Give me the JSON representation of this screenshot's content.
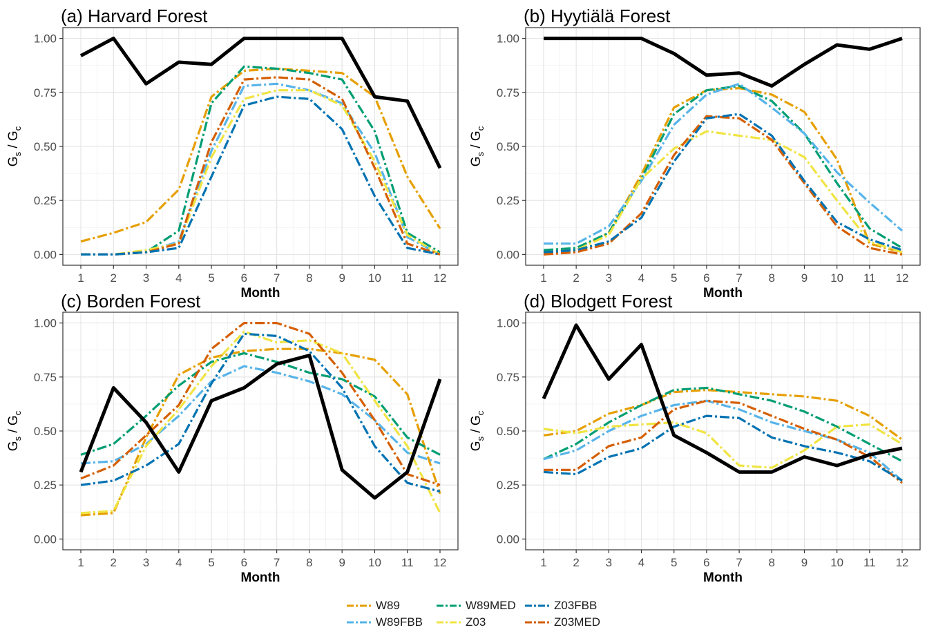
{
  "series_styles": {
    "OBS": {
      "color": "#000000",
      "dash": ""
    },
    "W89": {
      "color": "#E69F00",
      "dash": "14 4 3 4"
    },
    "W89MED": {
      "color": "#009E73",
      "dash": "14 4 3 4"
    },
    "Z03FBB": {
      "color": "#0072B2",
      "dash": "14 4 3 4"
    },
    "W89FBB": {
      "color": "#56B4E9",
      "dash": "14 4 3 4"
    },
    "Z03": {
      "color": "#F0E442",
      "dash": "14 4 3 4"
    },
    "Z03MED": {
      "color": "#D55E00",
      "dash": "14 4 3 4"
    }
  },
  "legend": [
    {
      "key": "W89",
      "label": "W89"
    },
    {
      "key": "W89MED",
      "label": "W89MED"
    },
    {
      "key": "Z03FBB",
      "label": "Z03FBB"
    },
    {
      "key": "W89FBB",
      "label": "W89FBB"
    },
    {
      "key": "Z03",
      "label": "Z03"
    },
    {
      "key": "Z03MED",
      "label": "Z03MED"
    }
  ],
  "chart_data": [
    {
      "type": "line",
      "title": "(a) Harvard Forest",
      "xlabel": "Month",
      "ylabel": "Gs / Gc",
      "x": [
        1,
        2,
        3,
        4,
        5,
        6,
        7,
        8,
        9,
        10,
        11,
        12
      ],
      "ylim": [
        0,
        1
      ],
      "yticks": [
        "0.00",
        "0.25",
        "0.50",
        "0.75",
        "1.00"
      ],
      "series": [
        {
          "key": "W89",
          "values": [
            0.06,
            0.1,
            0.15,
            0.3,
            0.73,
            0.85,
            0.86,
            0.85,
            0.84,
            0.73,
            0.36,
            0.12
          ]
        },
        {
          "key": "W89MED",
          "values": [
            0.0,
            0.0,
            0.01,
            0.11,
            0.7,
            0.87,
            0.86,
            0.84,
            0.81,
            0.57,
            0.1,
            0.01
          ]
        },
        {
          "key": "W89FBB",
          "values": [
            0.0,
            0.0,
            0.01,
            0.06,
            0.48,
            0.78,
            0.79,
            0.76,
            0.7,
            0.47,
            0.08,
            0.0
          ]
        },
        {
          "key": "Z03",
          "values": [
            0.0,
            0.0,
            0.02,
            0.05,
            0.45,
            0.72,
            0.76,
            0.76,
            0.69,
            0.43,
            0.09,
            0.0
          ]
        },
        {
          "key": "Z03MED",
          "values": [
            0.0,
            0.0,
            0.01,
            0.05,
            0.52,
            0.81,
            0.82,
            0.81,
            0.72,
            0.4,
            0.05,
            0.0
          ]
        },
        {
          "key": "Z03FBB",
          "values": [
            0.0,
            0.0,
            0.01,
            0.03,
            0.36,
            0.69,
            0.73,
            0.72,
            0.58,
            0.27,
            0.03,
            0.0
          ]
        },
        {
          "key": "OBS",
          "values": [
            0.92,
            1.0,
            0.79,
            0.89,
            0.88,
            1.0,
            1.0,
            1.0,
            1.0,
            0.73,
            0.71,
            0.4
          ]
        }
      ]
    },
    {
      "type": "line",
      "title": "(b) Hyytiälä Forest",
      "xlabel": "Month",
      "ylabel": "Gs / Gc",
      "x": [
        1,
        2,
        3,
        4,
        5,
        6,
        7,
        8,
        9,
        10,
        11,
        12
      ],
      "ylim": [
        0,
        1
      ],
      "yticks": [
        "0.00",
        "0.25",
        "0.50",
        "0.75",
        "1.00"
      ],
      "series": [
        {
          "key": "W89",
          "values": [
            0.01,
            0.02,
            0.1,
            0.37,
            0.68,
            0.76,
            0.77,
            0.74,
            0.66,
            0.44,
            0.05,
            0.01
          ]
        },
        {
          "key": "W89MED",
          "values": [
            0.02,
            0.03,
            0.1,
            0.35,
            0.65,
            0.76,
            0.78,
            0.71,
            0.56,
            0.33,
            0.12,
            0.03
          ]
        },
        {
          "key": "W89FBB",
          "values": [
            0.05,
            0.05,
            0.13,
            0.34,
            0.6,
            0.74,
            0.79,
            0.68,
            0.56,
            0.38,
            0.24,
            0.11
          ]
        },
        {
          "key": "Z03",
          "values": [
            0.01,
            0.02,
            0.09,
            0.35,
            0.49,
            0.57,
            0.55,
            0.53,
            0.45,
            0.25,
            0.06,
            0.01
          ]
        },
        {
          "key": "Z03MED",
          "values": [
            0.0,
            0.01,
            0.05,
            0.19,
            0.46,
            0.64,
            0.63,
            0.53,
            0.33,
            0.13,
            0.03,
            0.0
          ]
        },
        {
          "key": "Z03FBB",
          "values": [
            0.01,
            0.02,
            0.06,
            0.17,
            0.43,
            0.63,
            0.65,
            0.55,
            0.34,
            0.15,
            0.07,
            0.02
          ]
        },
        {
          "key": "OBS",
          "values": [
            1.0,
            1.0,
            1.0,
            1.0,
            0.93,
            0.83,
            0.84,
            0.78,
            0.88,
            0.97,
            0.95,
            1.0
          ]
        }
      ]
    },
    {
      "type": "line",
      "title": "(c) Borden Forest",
      "xlabel": "Month",
      "ylabel": "Gs / Gc",
      "x": [
        1,
        2,
        3,
        4,
        5,
        6,
        7,
        8,
        9,
        10,
        11,
        12
      ],
      "ylim": [
        0,
        1
      ],
      "yticks": [
        "0.00",
        "0.25",
        "0.50",
        "0.75",
        "1.00"
      ],
      "series": [
        {
          "key": "W89",
          "values": [
            0.11,
            0.12,
            0.47,
            0.76,
            0.84,
            0.87,
            0.88,
            0.88,
            0.86,
            0.83,
            0.67,
            0.21
          ]
        },
        {
          "key": "W89MED",
          "values": [
            0.39,
            0.44,
            0.57,
            0.71,
            0.82,
            0.86,
            0.82,
            0.77,
            0.74,
            0.66,
            0.47,
            0.39
          ]
        },
        {
          "key": "W89FBB",
          "values": [
            0.35,
            0.36,
            0.44,
            0.57,
            0.73,
            0.8,
            0.77,
            0.73,
            0.67,
            0.55,
            0.4,
            0.35
          ]
        },
        {
          "key": "Z03",
          "values": [
            0.12,
            0.13,
            0.43,
            0.6,
            0.8,
            0.96,
            0.91,
            0.92,
            0.86,
            0.64,
            0.43,
            0.12
          ]
        },
        {
          "key": "Z03MED",
          "values": [
            0.28,
            0.34,
            0.48,
            0.62,
            0.88,
            1.0,
            1.0,
            0.95,
            0.77,
            0.55,
            0.3,
            0.25
          ]
        },
        {
          "key": "Z03FBB",
          "values": [
            0.25,
            0.27,
            0.34,
            0.44,
            0.72,
            0.95,
            0.94,
            0.87,
            0.7,
            0.43,
            0.26,
            0.22
          ]
        },
        {
          "key": "OBS",
          "values": [
            0.31,
            0.7,
            0.54,
            0.31,
            0.64,
            0.7,
            0.81,
            0.85,
            0.32,
            0.19,
            0.31,
            0.74
          ]
        }
      ]
    },
    {
      "type": "line",
      "title": "(d) Blodgett Forest",
      "xlabel": "Month",
      "ylabel": "Gs / Gc",
      "x": [
        1,
        2,
        3,
        4,
        5,
        6,
        7,
        8,
        9,
        10,
        11,
        12
      ],
      "ylim": [
        0,
        1
      ],
      "yticks": [
        "0.00",
        "0.25",
        "0.50",
        "0.75",
        "1.00"
      ],
      "series": [
        {
          "key": "W89",
          "values": [
            0.48,
            0.5,
            0.58,
            0.62,
            0.68,
            0.69,
            0.68,
            0.67,
            0.66,
            0.64,
            0.57,
            0.46
          ]
        },
        {
          "key": "W89MED",
          "values": [
            0.37,
            0.44,
            0.54,
            0.62,
            0.69,
            0.7,
            0.67,
            0.64,
            0.59,
            0.52,
            0.44,
            0.36
          ]
        },
        {
          "key": "W89FBB",
          "values": [
            0.37,
            0.41,
            0.5,
            0.57,
            0.62,
            0.64,
            0.6,
            0.54,
            0.5,
            0.46,
            0.4,
            0.27
          ]
        },
        {
          "key": "Z03",
          "values": [
            0.51,
            0.49,
            0.52,
            0.53,
            0.54,
            0.49,
            0.34,
            0.33,
            0.41,
            0.52,
            0.53,
            0.44
          ]
        },
        {
          "key": "Z03MED",
          "values": [
            0.32,
            0.32,
            0.43,
            0.47,
            0.6,
            0.64,
            0.63,
            0.57,
            0.51,
            0.46,
            0.38,
            0.26
          ]
        },
        {
          "key": "Z03FBB",
          "values": [
            0.31,
            0.3,
            0.38,
            0.42,
            0.52,
            0.57,
            0.56,
            0.47,
            0.43,
            0.4,
            0.36,
            0.27
          ]
        },
        {
          "key": "OBS",
          "values": [
            0.65,
            0.99,
            0.74,
            0.9,
            0.48,
            0.4,
            0.31,
            0.31,
            0.38,
            0.34,
            0.39,
            0.42
          ]
        }
      ]
    }
  ]
}
